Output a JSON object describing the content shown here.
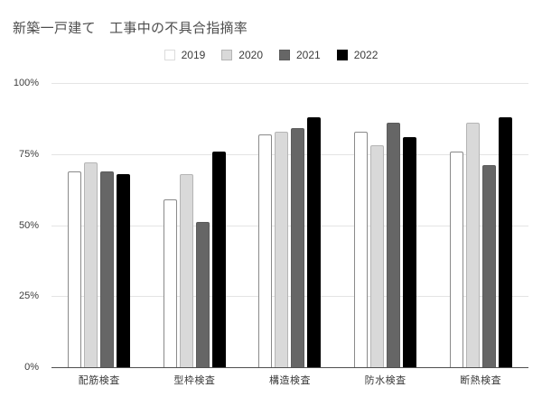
{
  "chart_data": {
    "type": "bar",
    "title": "新築一戸建て　工事中の不具合指摘率",
    "categories": [
      "配筋検査",
      "型枠検査",
      "構造検査",
      "防水検査",
      "断熱検査"
    ],
    "series": [
      {
        "name": "2019",
        "color": "#ffffff",
        "border": "#8a8a8a",
        "values": [
          69,
          59,
          82,
          83,
          76
        ]
      },
      {
        "name": "2020",
        "color": "#d9d9d9",
        "border": "#b5b5b5",
        "values": [
          72,
          68,
          83,
          78,
          86
        ]
      },
      {
        "name": "2021",
        "color": "#666666",
        "border": "#5c5c5c",
        "values": [
          69,
          51,
          84,
          86,
          71
        ]
      },
      {
        "name": "2022",
        "color": "#000000",
        "border": "#000000",
        "values": [
          68,
          76,
          88,
          81,
          88
        ]
      }
    ],
    "y_ticks": [
      "100%",
      "75%",
      "50%",
      "25%",
      "0%"
    ],
    "ylim": [
      0,
      100
    ],
    "grid": true,
    "legend_position": "top",
    "colors": {
      "title_text": "#4d4d4d",
      "axis_text": "#3d3d3d",
      "gridline": "#e4e4e4",
      "baseline": "#4f4f4f",
      "background": "#ffffff"
    }
  }
}
